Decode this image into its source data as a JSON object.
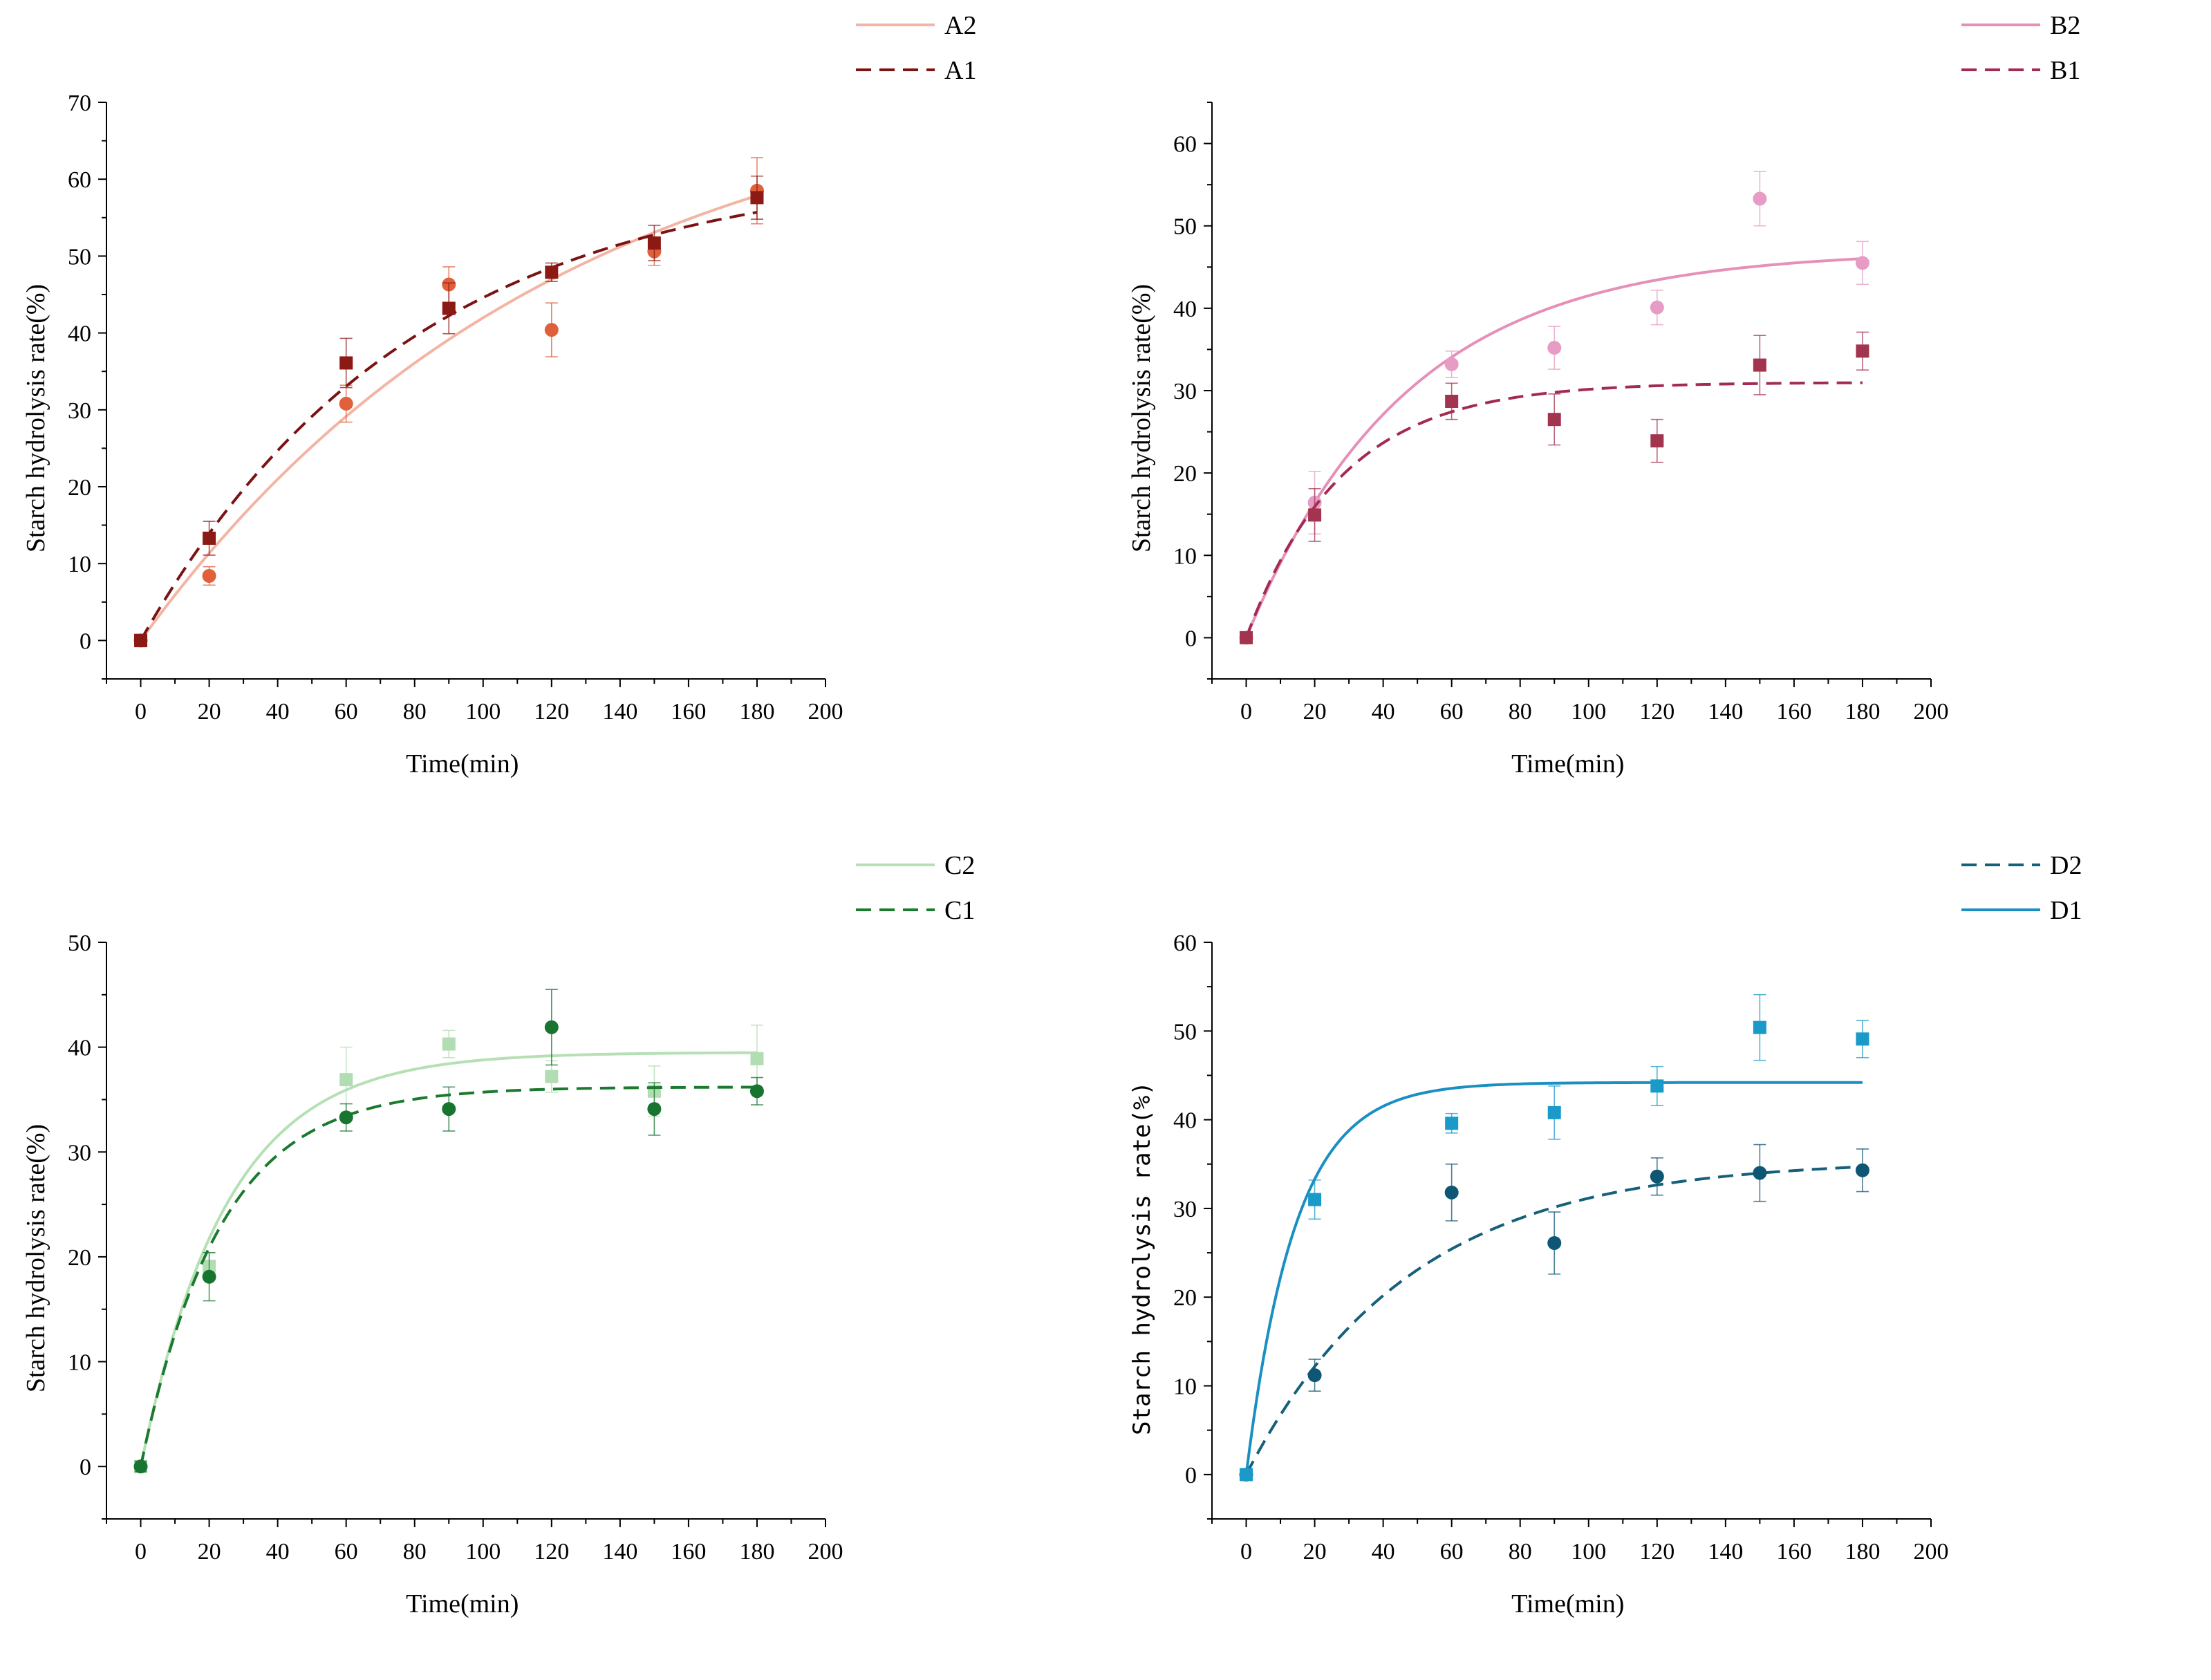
{
  "figure": {
    "x_label": "Time(min)",
    "x_ticks": [
      "0",
      "20",
      "40",
      "60",
      "80",
      "100",
      "120",
      "140",
      "160",
      "180",
      "200"
    ]
  },
  "chart_data": [
    {
      "id": "A",
      "type": "scatter",
      "title": "",
      "xlabel": "Time(min)",
      "ylabel": "Starch hydrolysis rate(%)",
      "xlim": [
        -10,
        200
      ],
      "ylim": [
        -5,
        70
      ],
      "y_ticks": [
        0,
        10,
        20,
        30,
        40,
        50,
        60,
        70
      ],
      "x_ticks": [
        0,
        20,
        40,
        60,
        80,
        100,
        120,
        140,
        160,
        180,
        200
      ],
      "legend_position": "top-right",
      "series": [
        {
          "name": "A2",
          "marker": "circle",
          "line": "solid",
          "line_color": "#F4B4A4",
          "marker_color": "#E0603A",
          "x": [
            0,
            20,
            60,
            90,
            120,
            150,
            180
          ],
          "y": [
            0,
            8.4,
            30.8,
            46.3,
            40.4,
            50.6,
            58.5
          ],
          "err": [
            0.8,
            1.2,
            2.4,
            2.3,
            3.5,
            1.8,
            4.3
          ],
          "fit": {
            "model": "exp",
            "a": 75,
            "k": 0.0082
          }
        },
        {
          "name": "A1",
          "marker": "square",
          "line": "dashed",
          "line_color": "#7B1313",
          "marker_color": "#8B1A14",
          "x": [
            0,
            20,
            60,
            90,
            120,
            150,
            180
          ],
          "y": [
            0,
            13.3,
            36.1,
            43.2,
            47.9,
            51.7,
            57.6
          ],
          "err": [
            0.8,
            2.2,
            3.2,
            3.3,
            1.2,
            2.3,
            2.8
          ],
          "fit": {
            "model": "exp",
            "a": 62,
            "k": 0.0127
          }
        }
      ]
    },
    {
      "id": "B",
      "type": "scatter",
      "title": "",
      "xlabel": "Time(min)",
      "ylabel": "Starch hydrolysis rate(%)",
      "xlim": [
        -10,
        200
      ],
      "ylim": [
        -5,
        65
      ],
      "y_ticks": [
        0,
        10,
        20,
        30,
        40,
        50,
        60
      ],
      "x_ticks": [
        0,
        20,
        40,
        60,
        80,
        100,
        120,
        140,
        160,
        180,
        200
      ],
      "legend_position": "top-right",
      "series": [
        {
          "name": "B2",
          "marker": "circle",
          "line": "solid",
          "line_color": "#E68FB9",
          "marker_color": "#E69CC4",
          "x": [
            0,
            20,
            60,
            90,
            120,
            150,
            180
          ],
          "y": [
            0,
            16.4,
            33.2,
            35.2,
            40.1,
            53.3,
            45.5
          ],
          "err": [
            0.6,
            3.8,
            1.6,
            2.6,
            2.1,
            3.3,
            2.6
          ],
          "fit": {
            "model": "exp",
            "a": 47,
            "k": 0.0215
          }
        },
        {
          "name": "B1",
          "marker": "square",
          "line": "dashed",
          "line_color": "#A32B52",
          "marker_color": "#A3344F",
          "x": [
            0,
            20,
            60,
            90,
            120,
            150,
            180
          ],
          "y": [
            0,
            14.9,
            28.7,
            26.5,
            23.9,
            33.1,
            34.8
          ],
          "err": [
            0.6,
            3.2,
            2.2,
            3.1,
            2.6,
            3.6,
            2.3
          ],
          "fit": {
            "model": "exp",
            "a": 31,
            "k": 0.036
          }
        }
      ]
    },
    {
      "id": "C",
      "type": "scatter",
      "title": "",
      "xlabel": "Time(min)",
      "ylabel": "Starch hydrolysis rate(%)",
      "xlim": [
        -10,
        200
      ],
      "ylim": [
        -5,
        50
      ],
      "y_ticks": [
        0,
        10,
        20,
        30,
        40,
        50
      ],
      "x_ticks": [
        0,
        20,
        40,
        60,
        80,
        100,
        120,
        140,
        160,
        180,
        200
      ],
      "legend_position": "top-right",
      "series": [
        {
          "name": "C2",
          "marker": "square",
          "line": "solid",
          "line_color": "#B5E0B5",
          "marker_color": "#B2DDB2",
          "x": [
            0,
            20,
            60,
            90,
            120,
            150,
            180
          ],
          "y": [
            0,
            19.1,
            36.9,
            40.3,
            37.2,
            35.8,
            38.9
          ],
          "err": [
            0.5,
            1.3,
            3.1,
            1.3,
            1.5,
            2.4,
            3.2
          ],
          "fit": {
            "model": "exp",
            "a": 39.5,
            "k": 0.04
          }
        },
        {
          "name": "C1",
          "marker": "circle",
          "line": "dashed",
          "line_color": "#1A7A2E",
          "marker_color": "#187530",
          "x": [
            0,
            20,
            60,
            90,
            120,
            150,
            180
          ],
          "y": [
            0,
            18.1,
            33.3,
            34.1,
            41.9,
            34.1,
            35.8
          ],
          "err": [
            0.5,
            2.3,
            1.3,
            2.1,
            3.6,
            2.5,
            1.3
          ],
          "fit": {
            "model": "exp",
            "a": 36.2,
            "k": 0.043
          }
        }
      ]
    },
    {
      "id": "D",
      "type": "scatter",
      "title": "",
      "xlabel": "Time(min)",
      "ylabel": "Starch hydrolysis rate(%)",
      "xlim": [
        -10,
        200
      ],
      "ylim": [
        -5,
        60
      ],
      "y_ticks": [
        0,
        10,
        20,
        30,
        40,
        50,
        60
      ],
      "x_ticks": [
        0,
        20,
        40,
        60,
        80,
        100,
        120,
        140,
        160,
        180,
        200
      ],
      "legend_position": "top-right",
      "series": [
        {
          "name": "D2",
          "marker": "circle",
          "line": "dashed",
          "line_color": "#15607A",
          "marker_color": "#0E5673",
          "x": [
            0,
            20,
            60,
            90,
            120,
            150,
            180
          ],
          "y": [
            0,
            11.2,
            31.8,
            26.1,
            33.6,
            34.0,
            34.3
          ],
          "err": [
            0.6,
            1.8,
            3.2,
            3.5,
            2.1,
            3.2,
            2.4
          ],
          "fit": {
            "model": "exp",
            "a": 35.5,
            "k": 0.021
          }
        },
        {
          "name": "D1",
          "marker": "square",
          "line": "solid",
          "line_color": "#1A8FC2",
          "marker_color": "#1A9AC8",
          "x": [
            0,
            20,
            60,
            90,
            120,
            150,
            180
          ],
          "y": [
            0,
            31.0,
            39.6,
            40.8,
            43.8,
            50.4,
            49.1
          ],
          "err": [
            0.6,
            2.2,
            1.1,
            3.0,
            2.2,
            3.7,
            2.1
          ],
          "fit": {
            "model": "exp",
            "a": 44.2,
            "k": 0.07
          }
        }
      ]
    }
  ]
}
